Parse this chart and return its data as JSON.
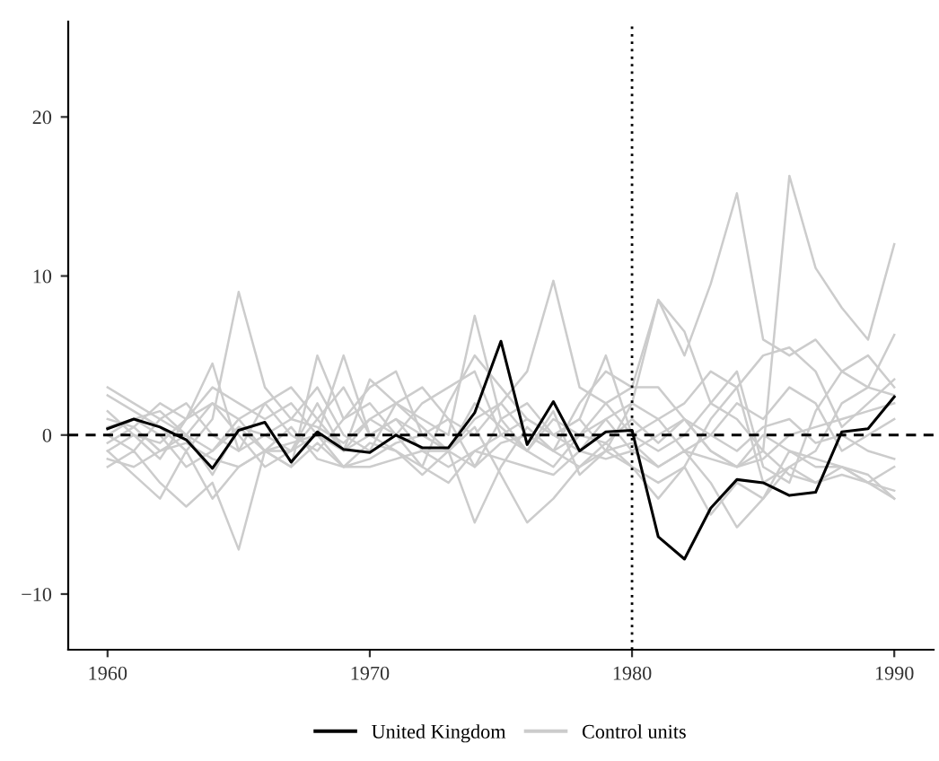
{
  "chart_data": {
    "type": "line",
    "x": [
      1960,
      1961,
      1962,
      1963,
      1964,
      1965,
      1966,
      1967,
      1968,
      1969,
      1970,
      1971,
      1972,
      1973,
      1974,
      1975,
      1976,
      1977,
      1978,
      1979,
      1980,
      1981,
      1982,
      1983,
      1984,
      1985,
      1986,
      1987,
      1988,
      1989,
      1990
    ],
    "series": [
      {
        "name": "United Kingdom",
        "color": "#000000",
        "values": [
          0.4,
          1.0,
          0.5,
          -0.3,
          -2.1,
          0.3,
          0.8,
          -1.7,
          0.2,
          -0.9,
          -1.1,
          0.0,
          -0.8,
          -0.8,
          1.4,
          5.9,
          -0.6,
          2.1,
          -1.0,
          0.2,
          0.3,
          -6.4,
          -7.8,
          -4.6,
          -2.8,
          -3.0,
          -3.8,
          -3.6,
          0.2,
          0.4,
          2.4
        ]
      },
      {
        "name": "Control units",
        "color": "#cccccc",
        "values": [
          2.5,
          1.5,
          0.5,
          -1,
          1,
          9,
          3,
          1,
          0.5,
          -0.5,
          1,
          2,
          0.5,
          -1,
          2,
          0.5,
          -1,
          1,
          0,
          -0.5,
          1,
          -0.5,
          1,
          0,
          -1,
          0.5,
          1,
          -0.5,
          0,
          -1,
          -1.5
        ]
      },
      {
        "color": "#cccccc",
        "values": [
          -2,
          -1,
          -3,
          -4.5,
          -3,
          -7.2,
          -1,
          0.5,
          -1.5,
          -2,
          -0.5,
          -1,
          -2.5,
          -1,
          -5.5,
          -2,
          0.5,
          -1,
          -2,
          -1,
          -0.5,
          -2,
          -1,
          -3,
          -5.8,
          -4,
          -2,
          -3,
          -2.5,
          -3,
          -4
        ]
      },
      {
        "color": "#cccccc",
        "values": [
          1,
          0.5,
          2,
          1,
          4.5,
          -1,
          2,
          3,
          1,
          -1,
          3.5,
          2,
          1,
          0,
          7.5,
          1,
          -1,
          1.5,
          -2.5,
          -1,
          2,
          8.5,
          5,
          9.5,
          15.2,
          6,
          5,
          6,
          4,
          3,
          6.3
        ]
      },
      {
        "color": "#cccccc",
        "values": [
          0,
          -1,
          1,
          2,
          0,
          -1,
          0,
          1,
          3,
          0,
          -1,
          2,
          3,
          1,
          0,
          2,
          4,
          9.7,
          3,
          2,
          3,
          3,
          1,
          -1,
          -2,
          -1.5,
          0,
          0.5,
          1,
          1.5,
          2
        ]
      },
      {
        "color": "#cccccc",
        "values": [
          -1,
          0,
          -0.5,
          1,
          2,
          0,
          -2,
          -1,
          0,
          5,
          0,
          -1,
          -2,
          -3,
          -1,
          0,
          1,
          0,
          1,
          -1,
          -2,
          -3,
          -2,
          1,
          3,
          5,
          5.5,
          4,
          0.5,
          2,
          3.5
        ]
      },
      {
        "color": "#cccccc",
        "values": [
          0.5,
          1,
          0,
          -2,
          -1,
          1,
          2,
          0,
          -1,
          1,
          3,
          4,
          0,
          1,
          -2,
          1,
          2,
          0,
          1,
          5,
          0,
          -1,
          0,
          2,
          1,
          -1,
          16.3,
          10.5,
          8,
          6,
          12
        ]
      },
      {
        "color": "#cccccc",
        "values": [
          -1.5,
          -2,
          -1,
          0,
          -2.5,
          0.5,
          -1,
          -2,
          -0.5,
          -2,
          -2,
          -1.5,
          -1,
          -2,
          -1,
          -1.5,
          -2,
          -2.5,
          -1,
          -1.5,
          -1,
          -2,
          -1,
          -1.5,
          -2,
          -1,
          -2.5,
          -3,
          -2,
          -3,
          -3.5
        ]
      },
      {
        "color": "#cccccc",
        "values": [
          3,
          2,
          1,
          0,
          2,
          1,
          -1,
          -2,
          5,
          1,
          2,
          0,
          2,
          3,
          4,
          0,
          -1,
          -2,
          0,
          2,
          0,
          1,
          2,
          4,
          3,
          -3,
          -2,
          -1,
          2,
          3,
          2.5
        ]
      },
      {
        "color": "#cccccc",
        "values": [
          -0.5,
          0.5,
          -1,
          -0.5,
          -1.5,
          -2,
          -1,
          -0.5,
          0,
          -2,
          -1.5,
          -0.5,
          0,
          -1,
          0.5,
          -2.5,
          -5.5,
          -4,
          -2,
          -0.5,
          -2,
          -4,
          -2,
          -5,
          -3,
          -4,
          -1,
          -1.5,
          -2,
          -2.5,
          -4
        ]
      },
      {
        "color": "#cccccc",
        "values": [
          1.5,
          0,
          -1.5,
          1,
          3,
          2,
          1,
          2,
          0,
          -1,
          1,
          0,
          -2,
          2,
          5,
          3,
          1,
          0,
          -1,
          1,
          2,
          1,
          -1,
          0,
          2,
          1,
          3,
          2,
          -1,
          0,
          1
        ]
      },
      {
        "color": "#cccccc",
        "values": [
          -1,
          -2.5,
          -4,
          -1,
          -4,
          -2,
          -1,
          -1,
          2,
          -1,
          0,
          1,
          -1,
          -1,
          -2,
          -0.5,
          0,
          -1,
          0,
          1,
          -1,
          0,
          1,
          -1,
          -2,
          0,
          -1,
          -2,
          -2,
          -3,
          -2
        ]
      },
      {
        "color": "#cccccc",
        "values": [
          0,
          1,
          1.5,
          0,
          -1,
          0.5,
          0,
          -1,
          1,
          3,
          0,
          1,
          0,
          -1,
          1,
          2,
          0,
          -1,
          2,
          4,
          3,
          8.5,
          6.5,
          2,
          4,
          -2,
          -3,
          1.5,
          4,
          5,
          3
        ]
      }
    ],
    "xlim": [
      1958.5,
      1991.5
    ],
    "xticks": [
      1960,
      1970,
      1980,
      1990
    ],
    "ylim": [
      -13.5,
      26
    ],
    "yticks": [
      {
        "value": -10,
        "label": "−10"
      },
      0,
      10,
      20
    ],
    "ref_lines": [
      {
        "axis": "y",
        "value": 0,
        "color": "#000000",
        "line_style": "dashed"
      },
      {
        "axis": "x",
        "value": 1980,
        "color": "#000000",
        "line_style": "dotted"
      }
    ],
    "grid": false,
    "legend": "bottom",
    "line_style": "solid",
    "marker": "none"
  }
}
